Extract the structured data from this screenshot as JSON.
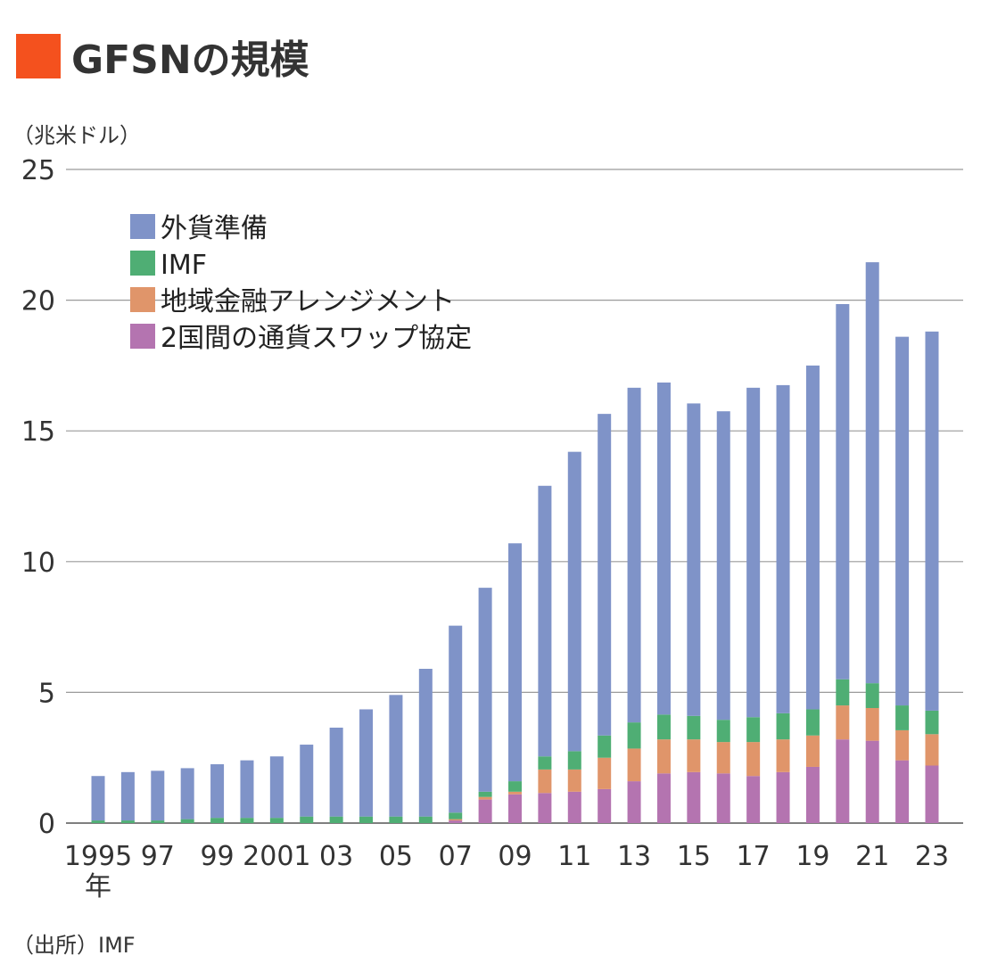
{
  "title": "GFSNの規模",
  "unit_label": "（兆米ドル）",
  "source_label": "（出所）IMF",
  "x_unit_label": "年",
  "colors": {
    "title_marker": "#f4511e",
    "fx_reserves": "#7f93c8",
    "imf": "#4fae74",
    "rfa": "#e0956a",
    "bsa": "#b474b0",
    "grid": "#9a9a9a"
  },
  "chart_data": {
    "type": "bar",
    "stacked": true,
    "ylim": [
      0,
      25
    ],
    "yticks": [
      0,
      5,
      10,
      15,
      20,
      25
    ],
    "xlabel": "",
    "ylabel": "（兆米ドル）",
    "grid": true,
    "legend_position": "top-left",
    "categories": [
      "1995",
      "1996",
      "1997",
      "1998",
      "1999",
      "2000",
      "2001",
      "2002",
      "2003",
      "2004",
      "2005",
      "2006",
      "2007",
      "2008",
      "2009",
      "2010",
      "2011",
      "2012",
      "2013",
      "2014",
      "2015",
      "2016",
      "2017",
      "2018",
      "2019",
      "2020",
      "2021",
      "2022",
      "2023"
    ],
    "xtick_labels": [
      "1995",
      "",
      "97",
      "",
      "99",
      "",
      "2001",
      "",
      "03",
      "",
      "05",
      "",
      "07",
      "",
      "09",
      "",
      "11",
      "",
      "13",
      "",
      "15",
      "",
      "17",
      "",
      "19",
      "",
      "21",
      "",
      "23"
    ],
    "series": [
      {
        "name": "2国間の通貨スワップ協定",
        "color_key": "bsa",
        "values": [
          0,
          0,
          0,
          0,
          0,
          0,
          0,
          0,
          0,
          0,
          0,
          0,
          0.1,
          0.9,
          1.1,
          1.15,
          1.2,
          1.3,
          1.6,
          1.9,
          1.95,
          1.9,
          1.8,
          1.95,
          2.15,
          3.2,
          3.15,
          2.4,
          2.2
        ]
      },
      {
        "name": "地域金融アレンジメント",
        "color_key": "rfa",
        "values": [
          0,
          0,
          0,
          0,
          0,
          0,
          0,
          0,
          0,
          0,
          0,
          0,
          0.05,
          0.1,
          0.1,
          0.9,
          0.85,
          1.2,
          1.25,
          1.3,
          1.25,
          1.2,
          1.3,
          1.25,
          1.2,
          1.3,
          1.25,
          1.15,
          1.2
        ]
      },
      {
        "name": "IMF",
        "color_key": "imf",
        "values": [
          0.1,
          0.1,
          0.1,
          0.15,
          0.2,
          0.2,
          0.2,
          0.25,
          0.25,
          0.25,
          0.25,
          0.25,
          0.25,
          0.2,
          0.4,
          0.5,
          0.7,
          0.85,
          1.0,
          0.95,
          0.9,
          0.85,
          0.95,
          1.0,
          1.0,
          1.0,
          0.95,
          0.95,
          0.9
        ]
      },
      {
        "name": "外貨準備",
        "color_key": "fx_reserves",
        "values": [
          1.7,
          1.85,
          1.9,
          1.95,
          2.05,
          2.2,
          2.35,
          2.75,
          3.4,
          4.1,
          4.65,
          5.65,
          7.15,
          7.8,
          9.1,
          10.35,
          11.45,
          12.3,
          12.8,
          12.7,
          11.95,
          11.8,
          12.6,
          12.55,
          13.15,
          14.35,
          16.1,
          14.1,
          14.5
        ]
      }
    ],
    "legend_order": [
      "外貨準備",
      "IMF",
      "地域金融アレンジメント",
      "2国間の通貨スワップ協定"
    ]
  }
}
